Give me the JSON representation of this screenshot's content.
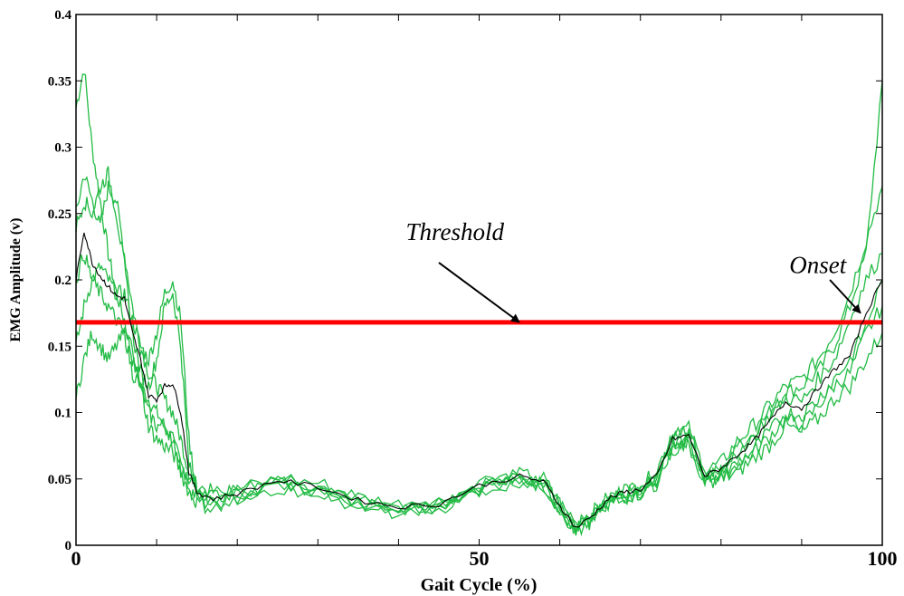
{
  "chart_data": {
    "type": "line",
    "title": "",
    "xlabel": "Gait Cycle (%)",
    "ylabel": "EMG Amplitude (v)",
    "xlim": [
      0,
      100
    ],
    "ylim": [
      0,
      0.4
    ],
    "x_ticks": [
      {
        "value": 0,
        "label": "0",
        "big": true
      },
      {
        "value": 50,
        "label": "50",
        "big": true
      },
      {
        "value": 100,
        "label": "100",
        "big": true
      }
    ],
    "x_minor_ticks": [
      10,
      20,
      30,
      40,
      60,
      70,
      80,
      90
    ],
    "y_ticks": [
      {
        "value": 0,
        "label": "0"
      },
      {
        "value": 0.05,
        "label": "0.05"
      },
      {
        "value": 0.1,
        "label": "0.1"
      },
      {
        "value": 0.15,
        "label": "0.15"
      },
      {
        "value": 0.2,
        "label": "0.2"
      },
      {
        "value": 0.25,
        "label": "0.25"
      },
      {
        "value": 0.3,
        "label": "0.3"
      },
      {
        "value": 0.35,
        "label": "0.35"
      },
      {
        "value": 0.4,
        "label": "0.4"
      }
    ],
    "grid": false,
    "colors": {
      "trials": "#22bb44",
      "mean": "#000000",
      "threshold": "#ff0000"
    },
    "threshold": {
      "value": 0.168
    },
    "mean_series": {
      "x": [
        0,
        1,
        2,
        3,
        4,
        5,
        6,
        7,
        8,
        9,
        10,
        11,
        12,
        13,
        14,
        15,
        17,
        20,
        25,
        30,
        35,
        40,
        45,
        50,
        55,
        58,
        60,
        62,
        64,
        66,
        68,
        70,
        72,
        74,
        76,
        78,
        80,
        82,
        84,
        86,
        88,
        90,
        92,
        94,
        96,
        98,
        100
      ],
      "y": [
        0.2,
        0.237,
        0.213,
        0.203,
        0.195,
        0.188,
        0.186,
        0.16,
        0.14,
        0.113,
        0.11,
        0.12,
        0.122,
        0.1,
        0.055,
        0.04,
        0.035,
        0.039,
        0.049,
        0.044,
        0.034,
        0.029,
        0.031,
        0.045,
        0.052,
        0.048,
        0.03,
        0.013,
        0.022,
        0.035,
        0.04,
        0.042,
        0.052,
        0.08,
        0.083,
        0.052,
        0.058,
        0.068,
        0.078,
        0.093,
        0.108,
        0.103,
        0.118,
        0.132,
        0.143,
        0.175,
        0.2
      ]
    },
    "trials": [
      {
        "values": [
          0.33,
          0.36,
          0.3,
          0.26,
          0.22,
          0.19,
          0.17,
          0.14,
          0.12,
          0.11,
          0.1,
          0.09,
          0.08,
          0.06,
          0.05,
          0.045,
          0.04,
          0.038,
          0.045,
          0.042,
          0.033,
          0.028,
          0.03,
          0.044,
          0.05,
          0.046,
          0.028,
          0.012,
          0.02,
          0.032,
          0.038,
          0.04,
          0.05,
          0.076,
          0.08,
          0.05,
          0.056,
          0.07,
          0.085,
          0.1,
          0.115,
          0.12,
          0.13,
          0.15,
          0.18,
          0.22,
          0.35
        ]
      },
      {
        "values": [
          0.25,
          0.28,
          0.26,
          0.24,
          0.27,
          0.26,
          0.22,
          0.18,
          0.15,
          0.13,
          0.12,
          0.11,
          0.1,
          0.08,
          0.055,
          0.045,
          0.038,
          0.042,
          0.05,
          0.047,
          0.036,
          0.031,
          0.033,
          0.046,
          0.053,
          0.05,
          0.032,
          0.015,
          0.024,
          0.036,
          0.041,
          0.044,
          0.056,
          0.085,
          0.088,
          0.056,
          0.062,
          0.078,
          0.09,
          0.105,
          0.12,
          0.125,
          0.14,
          0.16,
          0.19,
          0.23,
          0.27
        ]
      },
      {
        "values": [
          0.15,
          0.18,
          0.2,
          0.21,
          0.2,
          0.19,
          0.19,
          0.17,
          0.15,
          0.14,
          0.16,
          0.19,
          0.2,
          0.17,
          0.08,
          0.04,
          0.033,
          0.036,
          0.047,
          0.042,
          0.032,
          0.027,
          0.029,
          0.043,
          0.05,
          0.047,
          0.03,
          0.012,
          0.021,
          0.033,
          0.039,
          0.041,
          0.05,
          0.078,
          0.08,
          0.05,
          0.054,
          0.06,
          0.07,
          0.082,
          0.095,
          0.09,
          0.105,
          0.12,
          0.13,
          0.16,
          0.18
        ]
      },
      {
        "values": [
          0.11,
          0.14,
          0.16,
          0.15,
          0.14,
          0.15,
          0.16,
          0.13,
          0.12,
          0.1,
          0.09,
          0.09,
          0.08,
          0.06,
          0.045,
          0.035,
          0.03,
          0.035,
          0.046,
          0.041,
          0.031,
          0.026,
          0.028,
          0.042,
          0.049,
          0.045,
          0.028,
          0.011,
          0.02,
          0.032,
          0.037,
          0.039,
          0.048,
          0.075,
          0.078,
          0.048,
          0.05,
          0.055,
          0.065,
          0.075,
          0.09,
          0.085,
          0.095,
          0.11,
          0.12,
          0.14,
          0.16
        ]
      },
      {
        "values": [
          0.24,
          0.26,
          0.25,
          0.27,
          0.28,
          0.25,
          0.21,
          0.16,
          0.13,
          0.12,
          0.14,
          0.18,
          0.19,
          0.15,
          0.06,
          0.042,
          0.037,
          0.04,
          0.05,
          0.046,
          0.035,
          0.03,
          0.032,
          0.045,
          0.052,
          0.048,
          0.031,
          0.014,
          0.023,
          0.035,
          0.04,
          0.043,
          0.054,
          0.082,
          0.085,
          0.054,
          0.06,
          0.072,
          0.082,
          0.098,
          0.112,
          0.108,
          0.125,
          0.14,
          0.17,
          0.2,
          0.22
        ]
      },
      {
        "values": [
          0.2,
          0.22,
          0.2,
          0.19,
          0.18,
          0.17,
          0.16,
          0.15,
          0.12,
          0.09,
          0.08,
          0.075,
          0.07,
          0.055,
          0.04,
          0.032,
          0.028,
          0.033,
          0.044,
          0.04,
          0.03,
          0.025,
          0.027,
          0.041,
          0.048,
          0.044,
          0.027,
          0.01,
          0.019,
          0.031,
          0.036,
          0.038,
          0.047,
          0.072,
          0.076,
          0.047,
          0.052,
          0.062,
          0.072,
          0.085,
          0.1,
          0.098,
          0.11,
          0.125,
          0.14,
          0.165,
          0.2
        ]
      }
    ],
    "annotations": [
      {
        "text": "Threshold",
        "x": 47,
        "y": 0.23,
        "arrow_from": [
          45,
          0.213
        ],
        "arrow_to": [
          55,
          0.168
        ]
      },
      {
        "text": "Onset",
        "x": 92,
        "y": 0.205,
        "arrow_from": [
          93.5,
          0.2
        ],
        "arrow_to": [
          97.3,
          0.175
        ]
      }
    ]
  }
}
